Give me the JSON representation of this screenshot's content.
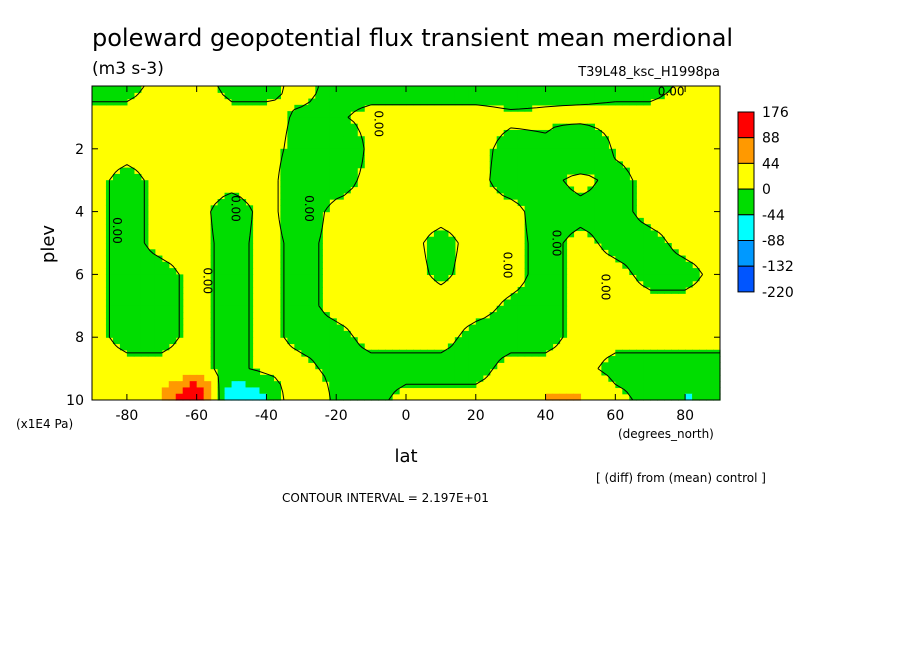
{
  "chart_data": {
    "type": "heatmap",
    "title": "poleward geopotential flux transient mean merdional",
    "units": "(m3 s-3)",
    "run_label": "T39L48_ksc_H1998pa",
    "xlabel": "lat",
    "x_units": "(degrees_north)",
    "ylabel": "plev",
    "y_units": "(x1E4 Pa)",
    "xlim": [
      -90,
      90
    ],
    "ylim": [
      10,
      0
    ],
    "x_ticks": [
      -80,
      -60,
      -40,
      -20,
      0,
      20,
      40,
      60,
      80
    ],
    "y_ticks": [
      2,
      4,
      6,
      8,
      10
    ],
    "contour_interval_text": "CONTOUR INTERVAL = 2.197E+01",
    "note": "[ (diff) from (mean) control ]",
    "contour_line_label": "0.00",
    "legend": {
      "labels": [
        "176",
        "88",
        "44",
        "0",
        "-44",
        "-88",
        "-132",
        "-220"
      ],
      "colors": [
        "#ff0000",
        "#ff9900",
        "#ffff00",
        "#00dd00",
        "#00ffff",
        "#0099ff",
        "#0055ff"
      ]
    },
    "lat": [
      -90,
      -80,
      -70,
      -60,
      -50,
      -40,
      -30,
      -20,
      -10,
      0,
      10,
      20,
      30,
      40,
      50,
      60,
      70,
      80,
      90
    ],
    "plev": [
      0,
      1,
      2,
      3,
      4,
      5,
      6,
      7,
      8,
      9,
      10
    ],
    "values": [
      [
        -10,
        -10,
        10,
        15,
        -10,
        -10,
        10,
        -10,
        -15,
        -15,
        -15,
        -15,
        -15,
        -10,
        -15,
        -10,
        -10,
        5,
        5
      ],
      [
        10,
        10,
        10,
        10,
        10,
        10,
        -5,
        -5,
        10,
        10,
        10,
        10,
        5,
        5,
        10,
        10,
        10,
        10,
        10
      ],
      [
        10,
        10,
        10,
        10,
        50,
        10,
        -10,
        -40,
        10,
        10,
        10,
        10,
        -10,
        -5,
        -40,
        5,
        10,
        10,
        10
      ],
      [
        10,
        -10,
        10,
        10,
        10,
        10,
        -20,
        -15,
        10,
        10,
        10,
        10,
        -15,
        -10,
        10,
        -10,
        10,
        10,
        10
      ],
      [
        10,
        -10,
        10,
        10,
        -15,
        10,
        -20,
        10,
        10,
        10,
        10,
        10,
        10,
        -15,
        -10,
        -10,
        10,
        10,
        10
      ],
      [
        10,
        -10,
        10,
        10,
        -10,
        10,
        -10,
        10,
        10,
        10,
        -10,
        10,
        10,
        -10,
        10,
        -10,
        -10,
        10,
        10
      ],
      [
        10,
        -10,
        -10,
        10,
        -10,
        10,
        -10,
        10,
        10,
        10,
        -5,
        10,
        10,
        -10,
        10,
        10,
        -10,
        -10,
        10
      ],
      [
        10,
        -10,
        -10,
        10,
        -10,
        10,
        -10,
        10,
        10,
        10,
        10,
        10,
        -5,
        -10,
        10,
        10,
        10,
        10,
        10
      ],
      [
        10,
        -10,
        -10,
        10,
        -10,
        10,
        -10,
        -10,
        10,
        10,
        10,
        -10,
        -10,
        -10,
        10,
        10,
        10,
        10,
        10
      ],
      [
        10,
        10,
        10,
        10,
        -10,
        10,
        10,
        -10,
        -10,
        -10,
        -10,
        -10,
        10,
        10,
        10,
        -10,
        -10,
        -10,
        -10
      ],
      [
        10,
        10,
        50,
        180,
        -100,
        -50,
        50,
        -10,
        -10,
        10,
        10,
        10,
        10,
        50,
        50,
        10,
        -10,
        -50,
        -30
      ]
    ]
  }
}
